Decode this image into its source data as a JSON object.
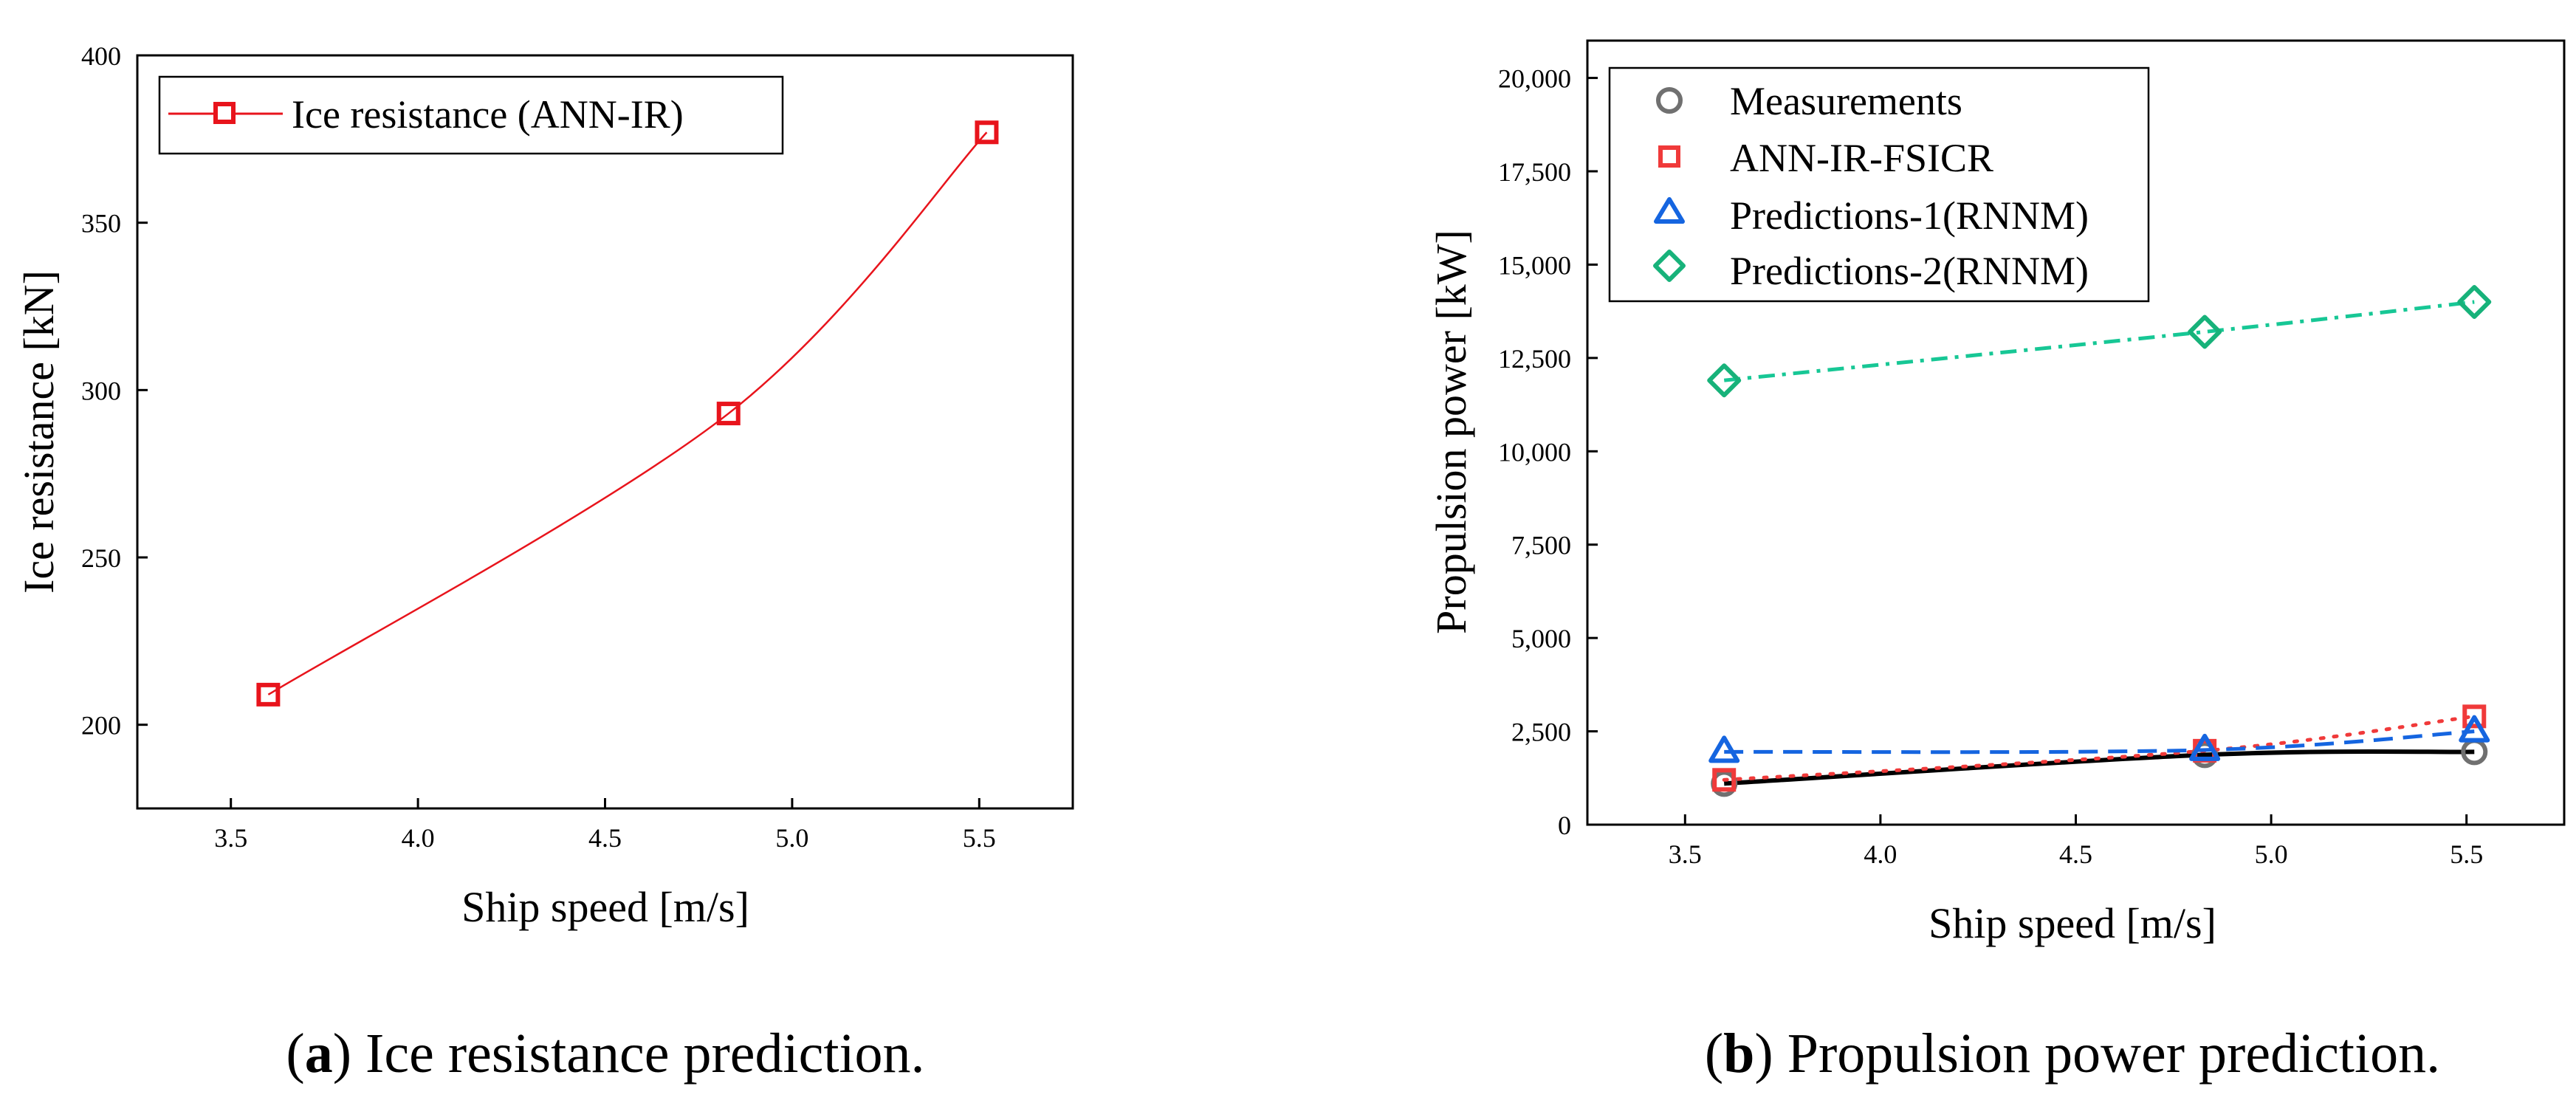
{
  "chart_data": [
    {
      "type": "line",
      "panel": "a",
      "caption_label": "a",
      "caption_text": "Ice resistance prediction.",
      "xlabel": "Ship speed [m/s]",
      "ylabel": "Ice resistance [kN]",
      "xlim": [
        3.25,
        5.75
      ],
      "ylim": [
        175,
        400
      ],
      "x_ticks": [
        3.5,
        4.0,
        4.5,
        5.0,
        5.5
      ],
      "x_tick_labels": [
        "3.5",
        "4.0",
        "4.5",
        "5.0",
        "5.5"
      ],
      "y_ticks": [
        200,
        250,
        300,
        350,
        400
      ],
      "y_tick_labels": [
        "200",
        "250",
        "300",
        "350",
        "400"
      ],
      "legend_position": "top-left",
      "series": [
        {
          "name": "Ice resistance (ANN-IR)",
          "color": "#e8141c",
          "marker": "square",
          "line_style": "solid",
          "x": [
            3.6,
            4.83,
            5.52
          ],
          "values": [
            209,
            293,
            377
          ]
        }
      ]
    },
    {
      "type": "line",
      "panel": "b",
      "caption_label": "b",
      "caption_text": "Propulsion power prediction.",
      "xlabel": "Ship speed [m/s]",
      "ylabel": "Propulsion power [kW]",
      "xlim": [
        3.25,
        5.75
      ],
      "ylim": [
        0,
        21000
      ],
      "x_ticks": [
        3.5,
        4.0,
        4.5,
        5.0,
        5.5
      ],
      "x_tick_labels": [
        "3.5",
        "4.0",
        "4.5",
        "5.0",
        "5.5"
      ],
      "y_ticks": [
        0,
        2500,
        5000,
        7500,
        10000,
        12500,
        15000,
        17500,
        20000
      ],
      "y_tick_labels": [
        "0",
        "2,500",
        "5,000",
        "7,500",
        "10,000",
        "12,500",
        "15,000",
        "17,500",
        "20,000"
      ],
      "legend_position": "top-left",
      "series": [
        {
          "name": "Measurements",
          "color": "#707070",
          "line_color": "#000000",
          "marker": "circle",
          "line_style": "solid",
          "x": [
            3.6,
            4.83,
            5.52
          ],
          "values": [
            1100,
            1870,
            1950
          ]
        },
        {
          "name": "ANN-IR-FSICR",
          "color": "#f03a3a",
          "line_color": "#f03a3a",
          "marker": "square",
          "line_style": "dotted",
          "x": [
            3.6,
            4.83,
            5.52
          ],
          "values": [
            1200,
            1980,
            2900
          ]
        },
        {
          "name": "Predictions-1(RNNM)",
          "color": "#1565e0",
          "line_color": "#1565e0",
          "marker": "triangle",
          "line_style": "dashed",
          "x": [
            3.6,
            4.83,
            5.52
          ],
          "values": [
            1950,
            2000,
            2500
          ]
        },
        {
          "name": "Predictions-2(RNNM)",
          "color": "#17b27a",
          "line_color": "#17c795",
          "marker": "diamond",
          "line_style": "dashdot",
          "x": [
            3.6,
            4.83,
            5.52
          ],
          "values": [
            11900,
            13200,
            14000
          ]
        }
      ]
    }
  ]
}
